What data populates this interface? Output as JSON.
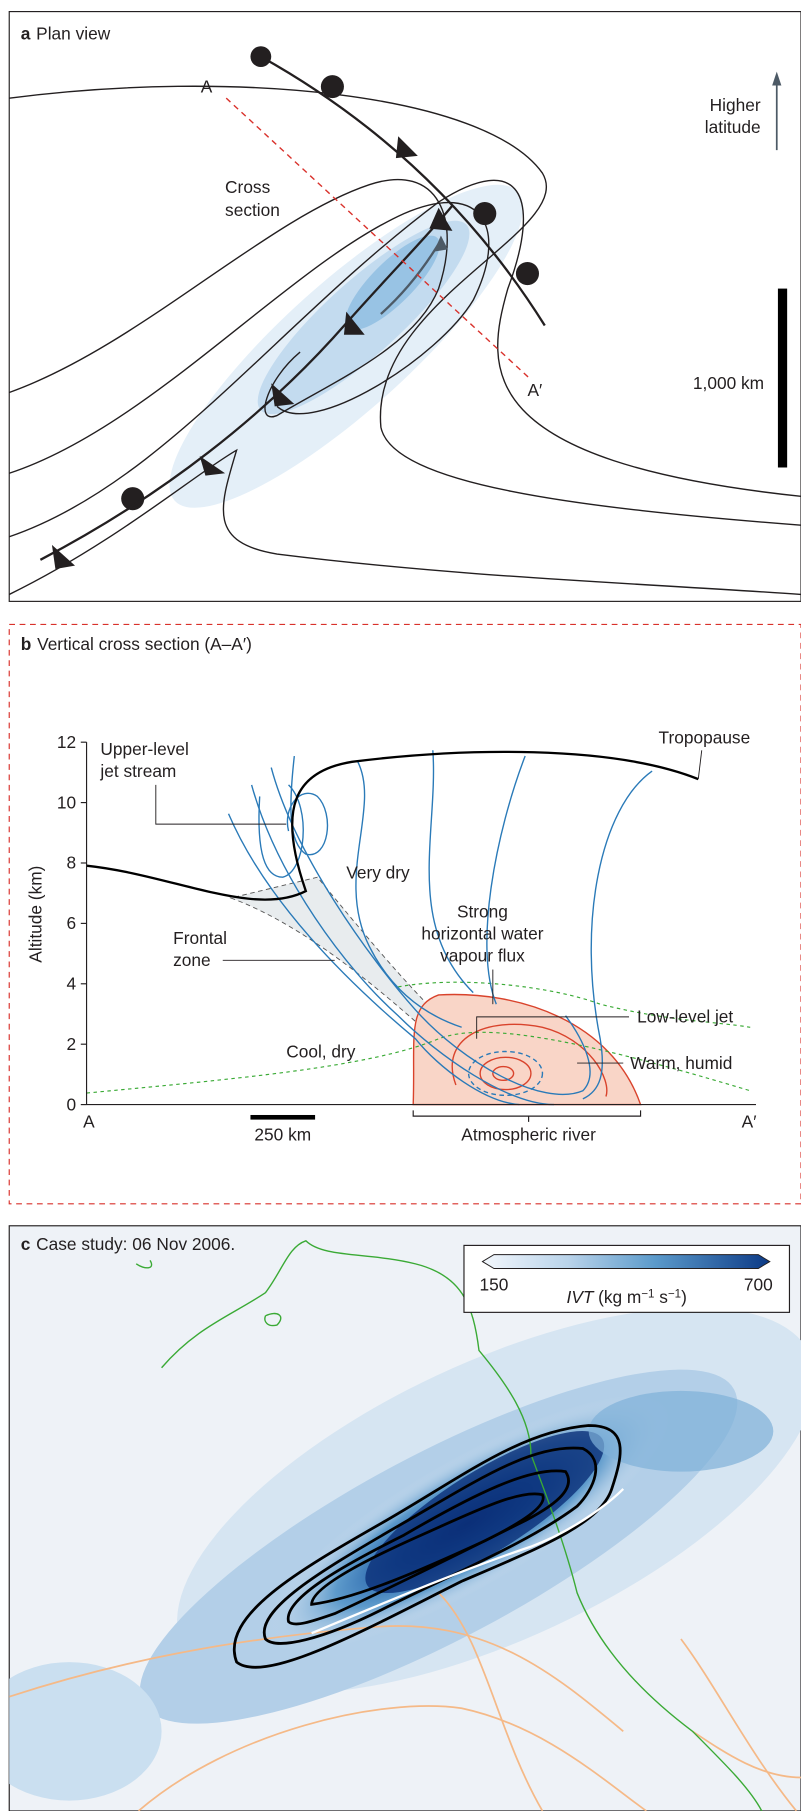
{
  "panel_a": {
    "letter": "a",
    "title": "Plan view",
    "point_a": "A",
    "point_a_prime": "A′",
    "cross_section": [
      "Cross",
      "section"
    ],
    "higher_latitude": [
      "Higher",
      "latitude"
    ],
    "scale": "1,000 km"
  },
  "panel_b": {
    "letter": "b",
    "title": "Vertical cross section (A–A′)",
    "y_axis_label": "Altitude (km)",
    "yticks": [
      0,
      2,
      4,
      6,
      8,
      10,
      12
    ],
    "x_start": "A",
    "x_end": "A′",
    "scale": "250 km",
    "tropopause": "Tropopause",
    "upper_jet": [
      "Upper-level",
      "jet stream"
    ],
    "very_dry": "Very dry",
    "strong_flux": [
      "Strong",
      "horizontal water",
      "vapour flux"
    ],
    "frontal_zone": [
      "Frontal",
      "zone"
    ],
    "low_level_jet": "Low-level jet",
    "cool_dry": "Cool, dry",
    "warm_humid": "Warm, humid",
    "atmospheric_river": "Atmospheric river"
  },
  "panel_c": {
    "letter": "c",
    "title": "Case study: 06 Nov 2006.",
    "colorbar_min": "150",
    "colorbar_max": "700",
    "colorbar_label": {
      "var": "IVT",
      "unit1": "(kg m",
      "exp1": "−1",
      "unit2": " s",
      "exp2": "−1",
      "close": ")"
    }
  }
}
